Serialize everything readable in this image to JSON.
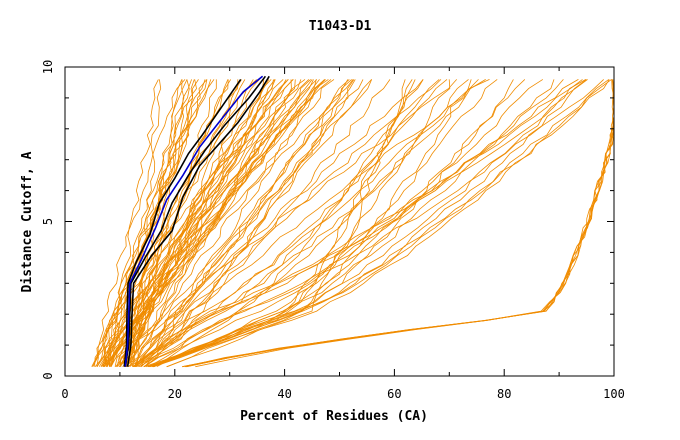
{
  "chart_data": {
    "type": "line",
    "title": "T1043-D1",
    "xlabel": "Percent of Residues (CA)",
    "ylabel": "Distance Cutoff, A",
    "xlim": [
      0,
      100
    ],
    "ylim": [
      0,
      10
    ],
    "x_ticks": [
      "0",
      "20",
      "40",
      "60",
      "80",
      "100"
    ],
    "y_ticks": [
      "0",
      "5",
      "10"
    ],
    "grid": false,
    "colors": {
      "models": "#f08c00",
      "highlight_black": "#000000",
      "highlight_blue": "#0000cc"
    },
    "highlight_series": [
      {
        "color": "#000000",
        "points": [
          [
            10.8,
            0.3
          ],
          [
            11.2,
            1.0
          ],
          [
            11.3,
            2.0
          ],
          [
            11.5,
            3.0
          ],
          [
            13.0,
            3.7
          ],
          [
            15.5,
            4.6
          ],
          [
            17.2,
            5.6
          ],
          [
            20.0,
            6.4
          ],
          [
            22.5,
            7.2
          ],
          [
            25.0,
            7.8
          ],
          [
            28.5,
            8.7
          ],
          [
            32.0,
            9.6
          ]
        ]
      },
      {
        "color": "#000000",
        "points": [
          [
            11.4,
            0.3
          ],
          [
            12.0,
            1.0
          ],
          [
            12.2,
            2.0
          ],
          [
            12.5,
            3.0
          ],
          [
            15.8,
            3.9
          ],
          [
            19.5,
            4.7
          ],
          [
            21.5,
            5.8
          ],
          [
            24.5,
            6.8
          ],
          [
            28.0,
            7.5
          ],
          [
            31.5,
            8.2
          ],
          [
            35.5,
            9.2
          ],
          [
            37.2,
            9.7
          ]
        ]
      },
      {
        "color": "#000000",
        "points": [
          [
            11.0,
            0.3
          ],
          [
            11.6,
            1.0
          ],
          [
            11.8,
            2.0
          ],
          [
            12.0,
            3.0
          ],
          [
            14.5,
            3.8
          ],
          [
            17.5,
            4.7
          ],
          [
            19.5,
            5.6
          ],
          [
            22.5,
            6.5
          ],
          [
            25.5,
            7.3
          ],
          [
            29.0,
            8.1
          ],
          [
            33.5,
            9.0
          ],
          [
            36.5,
            9.7
          ]
        ]
      },
      {
        "color": "#0000cc",
        "points": [
          [
            11.0,
            0.3
          ],
          [
            11.4,
            1.0
          ],
          [
            11.6,
            2.0
          ],
          [
            11.8,
            3.0
          ],
          [
            14.0,
            3.8
          ],
          [
            16.5,
            4.8
          ],
          [
            18.5,
            5.7
          ],
          [
            21.5,
            6.5
          ],
          [
            24.5,
            7.4
          ],
          [
            28.0,
            8.2
          ],
          [
            32.5,
            9.2
          ],
          [
            36.0,
            9.7
          ]
        ]
      }
    ]
  }
}
